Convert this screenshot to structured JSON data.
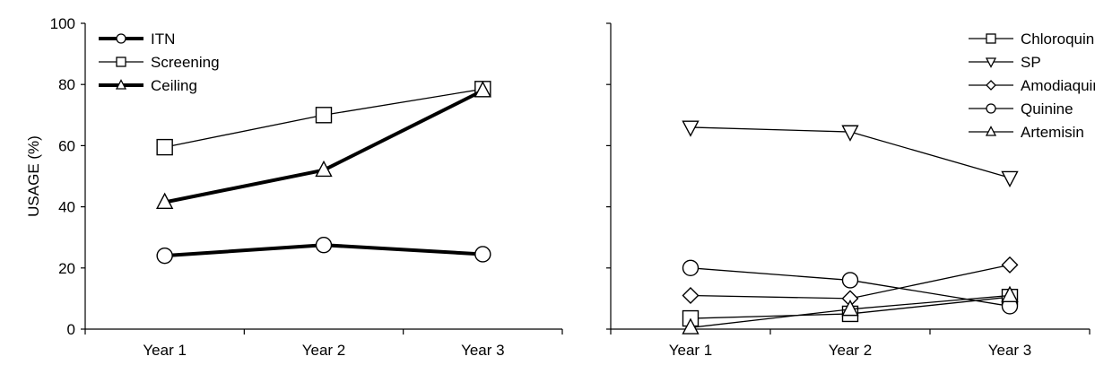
{
  "chart_data": [
    {
      "type": "line",
      "categories": [
        "Year 1",
        "Year 2",
        "Year 3"
      ],
      "ylabel": "USAGE (%)",
      "ylim": [
        0,
        100
      ],
      "yticks": [
        "0",
        "20",
        "40",
        "60",
        "80",
        "100"
      ],
      "grid": false,
      "legend_position": "top-left",
      "series": [
        {
          "name": "ITN",
          "marker": "circle",
          "weight": "thick",
          "values": [
            24,
            27.5,
            24.5
          ]
        },
        {
          "name": "Screening",
          "marker": "square",
          "weight": "thin",
          "values": [
            59.5,
            70,
            78.5
          ]
        },
        {
          "name": "Ceiling",
          "marker": "triangle-up",
          "weight": "thick",
          "values": [
            41.5,
            52,
            78
          ]
        }
      ]
    },
    {
      "type": "line",
      "categories": [
        "Year 1",
        "Year 2",
        "Year 3"
      ],
      "ylabel": "",
      "ylim": [
        0,
        100
      ],
      "grid": false,
      "legend_position": "top-right",
      "series": [
        {
          "name": "Chloroquine",
          "marker": "square",
          "weight": "thin",
          "values": [
            3.5,
            5,
            10.5
          ]
        },
        {
          "name": "SP",
          "marker": "triangle-down",
          "weight": "thin",
          "values": [
            66,
            64.5,
            49.5
          ]
        },
        {
          "name": "Amodiaquine",
          "marker": "diamond",
          "weight": "thin",
          "values": [
            11,
            10,
            21
          ]
        },
        {
          "name": "Quinine",
          "marker": "circle",
          "weight": "thin",
          "values": [
            20,
            16,
            7.5
          ]
        },
        {
          "name": "Artemisin",
          "marker": "triangle-up",
          "weight": "thin",
          "values": [
            0.5,
            6.5,
            11
          ]
        }
      ]
    }
  ]
}
